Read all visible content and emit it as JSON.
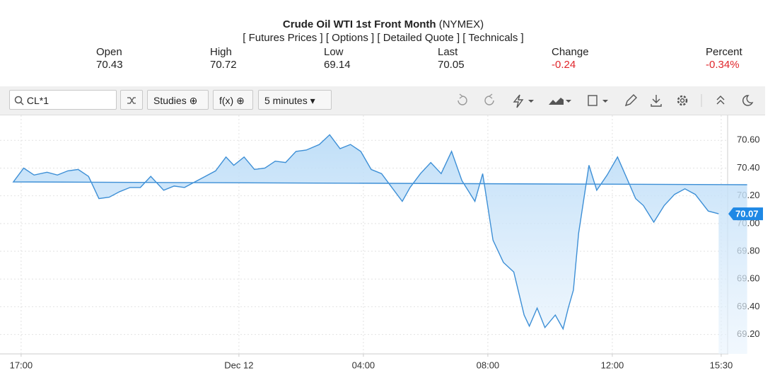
{
  "header": {
    "title": "Crude Oil WTI 1st Front Month",
    "exchange": "(NYMEX)",
    "links": [
      "[ Futures Prices ]",
      "[ Options ]",
      "[ Detailed Quote ]",
      "[ Technicals ]"
    ],
    "quote": [
      {
        "label": "Open",
        "value": "70.43"
      },
      {
        "label": "High",
        "value": "70.72"
      },
      {
        "label": "Low",
        "value": "69.14"
      },
      {
        "label": "Last",
        "value": "70.05"
      },
      {
        "label": "Change",
        "value": "-0.24"
      },
      {
        "label": "Percent",
        "value": "-0.34%"
      }
    ]
  },
  "toolbar": {
    "symbol": "CL*1",
    "studies": "Studies",
    "fx": "f(x)",
    "interval": "5 minutes"
  },
  "chart_data": {
    "type": "area",
    "color": "#3d8fd6",
    "x": [
      "16:20",
      "16:45",
      "17:05",
      "17:25",
      "17:50",
      "18:10",
      "18:30",
      "18:50",
      "19:10",
      "19:30",
      "19:50",
      "20:10",
      "20:30",
      "20:50",
      "21:10",
      "21:35",
      "21:55",
      "22:15",
      "22:35",
      "22:55",
      "23:15",
      "23:35",
      "23:50",
      "00:10",
      "00:30",
      "00:50",
      "01:10",
      "01:30",
      "01:50",
      "02:10",
      "02:35",
      "02:55",
      "03:15",
      "03:35",
      "03:55",
      "04:15",
      "04:35",
      "04:55",
      "05:15",
      "05:30",
      "05:50",
      "06:10",
      "06:30",
      "06:50",
      "07:10",
      "07:35",
      "07:50",
      "08:10",
      "08:30",
      "08:50",
      "09:10",
      "09:20",
      "09:35",
      "09:50",
      "10:10",
      "10:25",
      "10:35",
      "10:45",
      "10:55",
      "11:15",
      "11:30",
      "11:50",
      "12:10",
      "12:30",
      "12:45",
      "13:00",
      "13:20",
      "13:40",
      "14:00",
      "14:20",
      "14:40",
      "15:05",
      "15:25"
    ],
    "values": [
      70.28,
      70.3,
      70.4,
      70.35,
      70.37,
      70.35,
      70.38,
      70.39,
      70.34,
      70.18,
      70.19,
      70.23,
      70.26,
      70.26,
      70.34,
      70.24,
      70.27,
      70.26,
      70.3,
      70.34,
      70.38,
      70.48,
      70.42,
      70.48,
      70.39,
      70.4,
      70.45,
      70.44,
      70.52,
      70.53,
      70.57,
      70.64,
      70.54,
      70.57,
      70.52,
      70.39,
      70.36,
      70.26,
      70.16,
      70.26,
      70.36,
      70.44,
      70.36,
      70.52,
      70.31,
      70.16,
      70.36,
      69.88,
      69.72,
      69.65,
      69.34,
      69.26,
      69.39,
      69.25,
      69.34,
      69.24,
      69.39,
      69.52,
      69.93,
      70.42,
      70.24,
      70.35,
      70.48,
      70.31,
      70.18,
      70.13,
      70.01,
      70.13,
      70.21,
      70.25,
      70.21,
      70.09,
      70.07
    ],
    "xlim": [
      "16:22",
      "15:41"
    ],
    "xticks": [
      {
        "value": "17:00",
        "label": "17:00"
      },
      {
        "value": "00:00",
        "label": "Dec 12"
      },
      {
        "value": "04:00",
        "label": "04:00"
      },
      {
        "value": "08:00",
        "label": "08:00"
      },
      {
        "value": "12:00",
        "label": "12:00"
      },
      {
        "value": "15:30",
        "label": "15:30"
      }
    ],
    "ylim": [
      69.06,
      70.78
    ],
    "yticks": [
      {
        "value": 69.2,
        "label": "69.20"
      },
      {
        "value": 69.4,
        "label": "69.40"
      },
      {
        "value": 69.6,
        "label": "69.60"
      },
      {
        "value": 69.8,
        "label": "69.80"
      },
      {
        "value": 70.0,
        "label": "70.00"
      },
      {
        "value": 70.2,
        "label": "70.20"
      },
      {
        "value": 70.4,
        "label": "70.40"
      },
      {
        "value": 70.6,
        "label": "70.60"
      }
    ],
    "grid": true
  }
}
